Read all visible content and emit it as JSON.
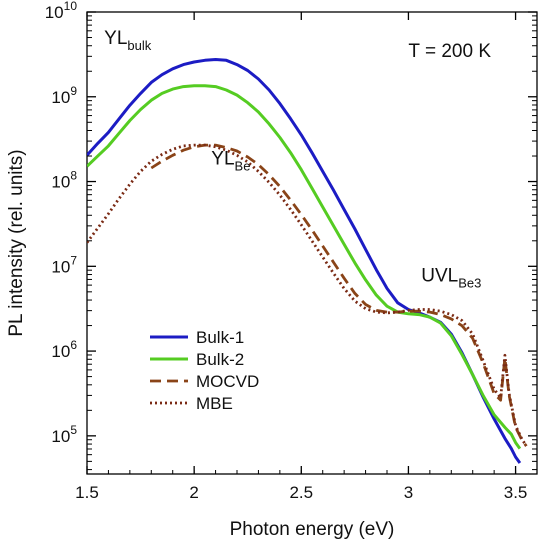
{
  "chart_data": {
    "type": "line",
    "title": "",
    "xlabel": "Photon energy (eV)",
    "ylabel": "PL intensity (rel. units)",
    "xlim": [
      1.5,
      3.6
    ],
    "ylim_log10": [
      4.55,
      10
    ],
    "yscale": "log",
    "grid": false,
    "legend": {
      "placement": "bottom-left"
    },
    "x_ticks": [
      {
        "value": 1.5,
        "label": "1.5"
      },
      {
        "value": 2.0,
        "label": "2"
      },
      {
        "value": 2.5,
        "label": "2.5"
      },
      {
        "value": 3.0,
        "label": "3"
      },
      {
        "value": 3.5,
        "label": "3.5"
      }
    ],
    "y_ticks": [
      {
        "exp": 5,
        "base": "10",
        "sup": "5"
      },
      {
        "exp": 6,
        "base": "10",
        "sup": "6"
      },
      {
        "exp": 7,
        "base": "10",
        "sup": "7"
      },
      {
        "exp": 8,
        "base": "10",
        "sup": "8"
      },
      {
        "exp": 9,
        "base": "10",
        "sup": "9"
      },
      {
        "exp": 10,
        "base": "10",
        "sup": "10"
      }
    ],
    "annotations": [
      {
        "main": "YL",
        "sub": "bulk",
        "x": 1.58,
        "log10y": 9.62
      },
      {
        "main": "YL",
        "sub": "Be",
        "x": 2.08,
        "log10y": 8.2
      },
      {
        "main": "UVL",
        "sub": "Be3",
        "x": 3.06,
        "log10y": 6.82
      },
      {
        "main": "T = 200 K",
        "sub": "",
        "x": 3.0,
        "log10y": 9.47
      }
    ],
    "series": [
      {
        "name": "Bulk-1",
        "color": "#1c1cc4",
        "dash": "solid",
        "x": [
          1.5,
          1.55,
          1.6,
          1.65,
          1.7,
          1.75,
          1.8,
          1.85,
          1.9,
          1.95,
          2.0,
          2.05,
          2.1,
          2.15,
          2.2,
          2.25,
          2.3,
          2.35,
          2.4,
          2.45,
          2.5,
          2.55,
          2.6,
          2.65,
          2.7,
          2.75,
          2.8,
          2.85,
          2.9,
          2.95,
          3.0,
          3.05,
          3.1,
          3.15,
          3.2,
          3.25,
          3.3,
          3.35,
          3.4,
          3.45,
          3.48,
          3.5,
          3.52
        ],
        "log10y": [
          8.31,
          8.45,
          8.58,
          8.74,
          8.9,
          9.04,
          9.17,
          9.26,
          9.33,
          9.38,
          9.41,
          9.43,
          9.44,
          9.43,
          9.38,
          9.31,
          9.21,
          9.08,
          8.92,
          8.74,
          8.55,
          8.34,
          8.12,
          7.9,
          7.67,
          7.44,
          7.2,
          6.96,
          6.74,
          6.57,
          6.49,
          6.45,
          6.4,
          6.34,
          6.2,
          5.98,
          5.72,
          5.45,
          5.2,
          4.97,
          4.85,
          4.75,
          4.68
        ]
      },
      {
        "name": "Bulk-2",
        "color": "#55cc22",
        "dash": "solid",
        "x": [
          1.5,
          1.55,
          1.6,
          1.65,
          1.7,
          1.75,
          1.8,
          1.85,
          1.9,
          1.95,
          2.0,
          2.05,
          2.1,
          2.15,
          2.2,
          2.25,
          2.3,
          2.35,
          2.4,
          2.45,
          2.5,
          2.55,
          2.6,
          2.65,
          2.7,
          2.75,
          2.8,
          2.85,
          2.9,
          2.95,
          3.0,
          3.05,
          3.1,
          3.15,
          3.2,
          3.25,
          3.3,
          3.35,
          3.4,
          3.45,
          3.48,
          3.5,
          3.52
        ],
        "log10y": [
          8.18,
          8.3,
          8.42,
          8.57,
          8.72,
          8.85,
          8.96,
          9.04,
          9.09,
          9.12,
          9.13,
          9.13,
          9.12,
          9.08,
          9.02,
          8.93,
          8.82,
          8.68,
          8.52,
          8.34,
          8.14,
          7.92,
          7.7,
          7.48,
          7.26,
          7.04,
          6.84,
          6.66,
          6.53,
          6.46,
          6.44,
          6.43,
          6.4,
          6.33,
          6.18,
          5.96,
          5.72,
          5.47,
          5.25,
          5.1,
          5.02,
          4.92,
          4.85
        ]
      },
      {
        "name": "MOCVD",
        "color": "#8a4418",
        "dash": "dashed",
        "x": [
          1.8,
          1.85,
          1.9,
          1.95,
          2.0,
          2.05,
          2.1,
          2.15,
          2.2,
          2.25,
          2.3,
          2.35,
          2.4,
          2.45,
          2.5,
          2.55,
          2.6,
          2.65,
          2.7,
          2.75,
          2.8,
          2.85,
          2.9,
          2.95,
          3.0,
          3.05,
          3.1,
          3.15,
          3.2,
          3.25,
          3.3,
          3.35,
          3.4,
          3.43,
          3.45,
          3.47,
          3.5,
          3.53,
          3.55
        ],
        "log10y": [
          8.16,
          8.24,
          8.31,
          8.37,
          8.41,
          8.43,
          8.43,
          8.4,
          8.36,
          8.29,
          8.2,
          8.08,
          7.94,
          7.78,
          7.61,
          7.43,
          7.24,
          7.05,
          6.86,
          6.68,
          6.55,
          6.48,
          6.46,
          6.46,
          6.47,
          6.47,
          6.46,
          6.43,
          6.38,
          6.3,
          6.15,
          5.85,
          5.5,
          5.42,
          5.92,
          5.48,
          5.1,
          4.95,
          4.88
        ]
      },
      {
        "name": "MBE",
        "color": "#7a2a14",
        "dash": "dotted",
        "x": [
          1.5,
          1.55,
          1.6,
          1.65,
          1.7,
          1.75,
          1.8,
          1.85,
          1.9,
          1.95,
          2.0,
          2.05,
          2.1,
          2.15,
          2.2,
          2.25,
          2.3,
          2.35,
          2.4,
          2.45,
          2.5,
          2.55,
          2.6,
          2.65,
          2.7,
          2.75,
          2.8,
          2.85,
          2.9,
          2.95,
          3.0,
          3.05,
          3.1,
          3.15,
          3.2,
          3.25,
          3.3,
          3.35,
          3.4,
          3.43,
          3.45,
          3.47,
          3.5,
          3.53,
          3.55
        ],
        "log10y": [
          7.28,
          7.45,
          7.62,
          7.8,
          7.97,
          8.12,
          8.24,
          8.32,
          8.38,
          8.42,
          8.43,
          8.43,
          8.41,
          8.37,
          8.31,
          8.23,
          8.12,
          7.99,
          7.84,
          7.67,
          7.49,
          7.3,
          7.11,
          6.92,
          6.74,
          6.59,
          6.5,
          6.46,
          6.45,
          6.46,
          6.48,
          6.49,
          6.49,
          6.47,
          6.43,
          6.36,
          6.2,
          5.88,
          5.55,
          5.45,
          5.95,
          5.5,
          5.12,
          4.96,
          4.88
        ]
      }
    ]
  }
}
